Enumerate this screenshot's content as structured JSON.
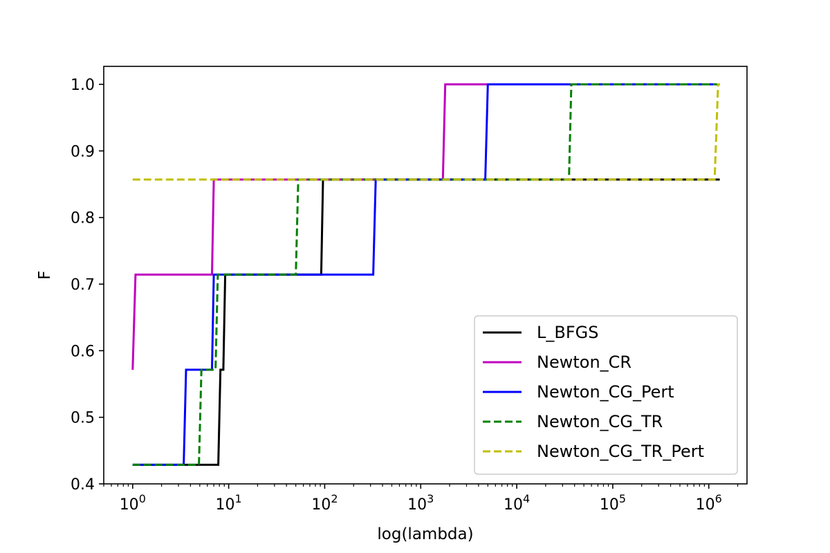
{
  "chart_data": {
    "type": "line",
    "title": "",
    "xlabel": "log(lambda)",
    "ylabel": "F",
    "xscale": "log",
    "xlim": [
      0.5,
      2500000
    ],
    "ylim": [
      0.4,
      1.027
    ],
    "grid": false,
    "legend_position": "lower-right",
    "x_ticks": [
      {
        "value": 1,
        "base": "10",
        "exp": "0"
      },
      {
        "value": 10,
        "base": "10",
        "exp": "1"
      },
      {
        "value": 100,
        "base": "10",
        "exp": "2"
      },
      {
        "value": 1000,
        "base": "10",
        "exp": "3"
      },
      {
        "value": 10000,
        "base": "10",
        "exp": "4"
      },
      {
        "value": 100000,
        "base": "10",
        "exp": "5"
      },
      {
        "value": 1000000,
        "base": "10",
        "exp": "6"
      }
    ],
    "y_ticks": [
      {
        "value": 0.4,
        "label": "0.4"
      },
      {
        "value": 0.5,
        "label": "0.5"
      },
      {
        "value": 0.6,
        "label": "0.6"
      },
      {
        "value": 0.7,
        "label": "0.7"
      },
      {
        "value": 0.8,
        "label": "0.8"
      },
      {
        "value": 0.9,
        "label": "0.9"
      },
      {
        "value": 1.0,
        "label": "1.0"
      }
    ],
    "series": [
      {
        "name": "L_BFGS",
        "color": "#000000",
        "dash": "solid",
        "points": [
          [
            1,
            0.4286
          ],
          [
            7.8,
            0.4286
          ],
          [
            8.2,
            0.5714
          ],
          [
            8.8,
            0.5714
          ],
          [
            9.2,
            0.7143
          ],
          [
            92,
            0.7143
          ],
          [
            96,
            0.8571
          ],
          [
            1300000,
            0.8571
          ]
        ]
      },
      {
        "name": "Newton_CR",
        "color": "#bf00bf",
        "dash": "solid",
        "points": [
          [
            1,
            0.5714
          ],
          [
            1.07,
            0.7143
          ],
          [
            6.7,
            0.7143
          ],
          [
            7.0,
            0.8571
          ],
          [
            1700,
            0.8571
          ],
          [
            1800,
            1.0
          ],
          [
            1300000,
            1.0
          ]
        ]
      },
      {
        "name": "Newton_CG_Pert",
        "color": "#0000ff",
        "dash": "solid",
        "points": [
          [
            1,
            0.4286
          ],
          [
            3.4,
            0.4286
          ],
          [
            3.6,
            0.5714
          ],
          [
            6.7,
            0.5714
          ],
          [
            7.0,
            0.7143
          ],
          [
            320,
            0.7143
          ],
          [
            340,
            0.8571
          ],
          [
            4700,
            0.8571
          ],
          [
            5000,
            1.0
          ],
          [
            1300000,
            1.0
          ]
        ]
      },
      {
        "name": "Newton_CG_TR",
        "color": "#008000",
        "dash": "dashed",
        "points": [
          [
            1,
            0.4286
          ],
          [
            4.9,
            0.4286
          ],
          [
            5.2,
            0.5714
          ],
          [
            7.3,
            0.5714
          ],
          [
            7.7,
            0.7143
          ],
          [
            50,
            0.7143
          ],
          [
            53,
            0.8571
          ],
          [
            35000,
            0.8571
          ],
          [
            37000,
            1.0
          ],
          [
            1300000,
            1.0
          ]
        ]
      },
      {
        "name": "Newton_CG_TR_Pert",
        "color": "#bfbf00",
        "dash": "dashed",
        "points": [
          [
            1,
            0.8571
          ],
          [
            1150000,
            0.8571
          ],
          [
            1250000,
            1.0
          ],
          [
            1300000,
            1.0
          ]
        ]
      }
    ]
  }
}
